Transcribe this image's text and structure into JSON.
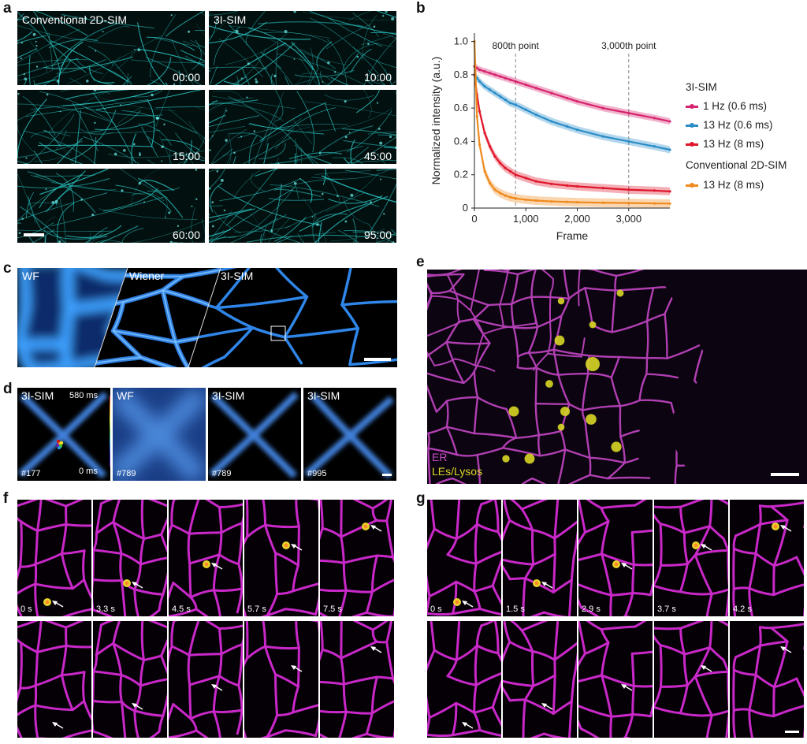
{
  "panel_labels": {
    "a": "a",
    "b": "b",
    "c": "c",
    "d": "d",
    "e": "e",
    "f": "f",
    "g": "g"
  },
  "panel_a": {
    "col_titles": [
      "Conventional 2D-SIM",
      "3I-SIM"
    ],
    "timestamps": [
      "00:00",
      "10:00",
      "15:00",
      "45:00",
      "60:00",
      "95:00"
    ]
  },
  "panel_c": {
    "labels": [
      "WF",
      "Wiener",
      "3I-SIM"
    ]
  },
  "panel_d": {
    "titles": [
      "3I-SIM",
      "WF",
      "3I-SIM",
      "3I-SIM"
    ],
    "frames": [
      "#177",
      "#789",
      "#789",
      "#995"
    ],
    "colorbar_max": "580 ms",
    "colorbar_min": "0 ms"
  },
  "panel_e": {
    "labels": [
      "ER",
      "LEs/Lysos"
    ],
    "colors": {
      "er": "#b13fb3",
      "lysos": "#d8d626"
    }
  },
  "panel_f": {
    "times": [
      "0 s",
      "3.3 s",
      "4.5 s",
      "5.7 s",
      "7.5 s"
    ]
  },
  "panel_g": {
    "times": [
      "0 s",
      "1.5 s",
      "2.9 s",
      "3.7 s",
      "4.2 s"
    ]
  },
  "chart_data": {
    "type": "line",
    "xlabel": "Frame",
    "ylabel": "Normalized intensity (a.u.)",
    "xlim": [
      0,
      3800
    ],
    "ylim": [
      0,
      1.05
    ],
    "xticks": [
      0,
      1000,
      2000,
      3000
    ],
    "xtick_labels": [
      "0",
      "1,000",
      "2,000",
      "3,000"
    ],
    "yticks": [
      0,
      0.2,
      0.4,
      0.6,
      0.8,
      1.0
    ],
    "ytick_labels": [
      "0",
      "0.2",
      "0.4",
      "0.6",
      "0.8",
      "1.0"
    ],
    "annotations": [
      {
        "label": "800th point",
        "x": 800
      },
      {
        "label": "3,000th point",
        "x": 3000
      }
    ],
    "legend_groups": [
      "3I-SIM",
      "Conventional 2D-SIM"
    ],
    "x": [
      0,
      50,
      100,
      200,
      300,
      400,
      500,
      600,
      700,
      800,
      1000,
      1200,
      1500,
      1800,
      2000,
      2500,
      3000,
      3500,
      3800
    ],
    "series": [
      {
        "name": "1 Hz (0.6 ms)",
        "group": "3I-SIM",
        "color": "#d6246e",
        "values": [
          0.85,
          0.84,
          0.83,
          0.82,
          0.81,
          0.8,
          0.79,
          0.78,
          0.77,
          0.76,
          0.74,
          0.72,
          0.69,
          0.66,
          0.64,
          0.6,
          0.57,
          0.54,
          0.52
        ]
      },
      {
        "name": "13 Hz (0.6 ms)",
        "group": "3I-SIM",
        "color": "#2a8dc8",
        "values": [
          0.8,
          0.78,
          0.76,
          0.73,
          0.71,
          0.69,
          0.67,
          0.65,
          0.63,
          0.62,
          0.59,
          0.56,
          0.52,
          0.49,
          0.47,
          0.43,
          0.4,
          0.37,
          0.35
        ]
      },
      {
        "name": "13 Hz (8 ms)",
        "group": "3I-SIM",
        "color": "#e0162b",
        "values": [
          0.8,
          0.68,
          0.58,
          0.45,
          0.37,
          0.31,
          0.27,
          0.24,
          0.22,
          0.2,
          0.18,
          0.16,
          0.145,
          0.135,
          0.13,
          0.12,
          0.11,
          0.105,
          0.1
        ]
      },
      {
        "name": "13 Hz (8 ms)",
        "group": "Conventional 2D-SIM",
        "color": "#f08a1c",
        "values": [
          1.0,
          0.55,
          0.38,
          0.22,
          0.15,
          0.11,
          0.09,
          0.075,
          0.065,
          0.058,
          0.05,
          0.045,
          0.04,
          0.037,
          0.035,
          0.032,
          0.03,
          0.028,
          0.027
        ]
      }
    ]
  }
}
